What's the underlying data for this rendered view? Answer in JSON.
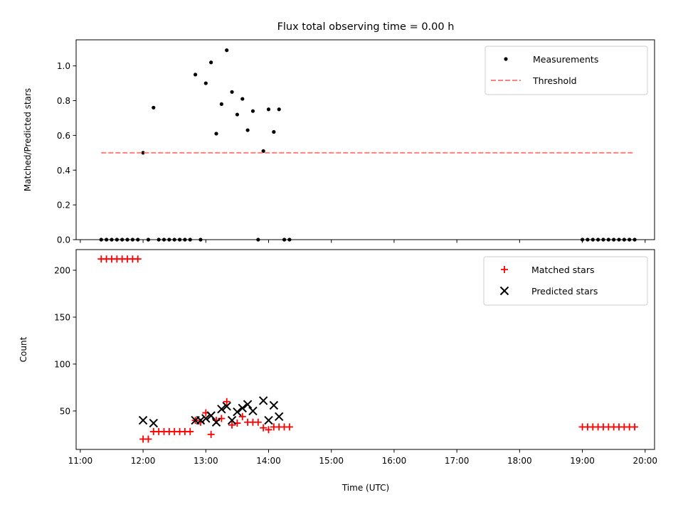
{
  "figure": {
    "title": "Flux total observing time = 0.00 h"
  },
  "chart_data": [
    {
      "type": "scatter",
      "panel": "top",
      "title": "Flux total observing time = 0.00 h",
      "xlabel": "",
      "ylabel": "Matched/Predicted stars",
      "xlim": [
        "10:56",
        "20:09"
      ],
      "ylim": [
        0,
        1.15
      ],
      "xticks": [
        "11:00",
        "12:00",
        "13:00",
        "14:00",
        "15:00",
        "16:00",
        "17:00",
        "18:00",
        "19:00",
        "20:00"
      ],
      "yticks": [
        "0.0",
        "0.2",
        "0.4",
        "0.6",
        "0.8",
        "1.0"
      ],
      "ytick_values": [
        0,
        0.2,
        0.4,
        0.6,
        0.8,
        1.0
      ],
      "legend_position": "top-right",
      "grid": false,
      "series": [
        {
          "name": "Measurements",
          "marker": "dot",
          "color": "#000000",
          "points": [
            [
              "11:20",
              0
            ],
            [
              "11:25",
              0
            ],
            [
              "11:30",
              0
            ],
            [
              "11:35",
              0
            ],
            [
              "11:40",
              0
            ],
            [
              "11:45",
              0
            ],
            [
              "11:50",
              0
            ],
            [
              "11:55",
              0
            ],
            [
              "12:00",
              0.5
            ],
            [
              "12:05",
              0
            ],
            [
              "12:10",
              0.76
            ],
            [
              "12:15",
              0
            ],
            [
              "12:20",
              0
            ],
            [
              "12:25",
              0
            ],
            [
              "12:30",
              0
            ],
            [
              "12:35",
              0
            ],
            [
              "12:40",
              0
            ],
            [
              "12:45",
              0
            ],
            [
              "12:50",
              0.95
            ],
            [
              "12:55",
              0
            ],
            [
              "13:00",
              0.9
            ],
            [
              "13:05",
              1.02
            ],
            [
              "13:10",
              0.61
            ],
            [
              "13:15",
              0.78
            ],
            [
              "13:20",
              1.09
            ],
            [
              "13:25",
              0.85
            ],
            [
              "13:30",
              0.72
            ],
            [
              "13:35",
              0.81
            ],
            [
              "13:40",
              0.63
            ],
            [
              "13:45",
              0.74
            ],
            [
              "13:50",
              0
            ],
            [
              "13:55",
              0.51
            ],
            [
              "14:00",
              0.75
            ],
            [
              "14:05",
              0.62
            ],
            [
              "14:10",
              0.75
            ],
            [
              "14:15",
              0
            ],
            [
              "14:20",
              0
            ],
            [
              "19:00",
              0
            ],
            [
              "19:05",
              0
            ],
            [
              "19:10",
              0
            ],
            [
              "19:15",
              0
            ],
            [
              "19:20",
              0
            ],
            [
              "19:25",
              0
            ],
            [
              "19:30",
              0
            ],
            [
              "19:35",
              0
            ],
            [
              "19:40",
              0
            ],
            [
              "19:45",
              0
            ],
            [
              "19:50",
              0
            ]
          ]
        },
        {
          "name": "Threshold",
          "marker": "dashed-line",
          "color": "#ff7f7f",
          "points": [
            [
              "11:20",
              0.5
            ],
            [
              "19:50",
              0.5
            ]
          ]
        }
      ]
    },
    {
      "type": "scatter",
      "panel": "bottom",
      "xlabel": "Time (UTC)",
      "ylabel": "Count",
      "xlim": [
        "10:56",
        "20:09"
      ],
      "ylim": [
        9,
        222
      ],
      "xticks": [
        "11:00",
        "12:00",
        "13:00",
        "14:00",
        "15:00",
        "16:00",
        "17:00",
        "18:00",
        "19:00",
        "20:00"
      ],
      "yticks": [
        "50",
        "100",
        "150",
        "200"
      ],
      "ytick_values": [
        50,
        100,
        150,
        200
      ],
      "legend_position": "top-right",
      "grid": false,
      "series": [
        {
          "name": "Matched stars",
          "marker": "plus",
          "color": "#ff0000",
          "points": [
            [
              "11:20",
              212
            ],
            [
              "11:25",
              212
            ],
            [
              "11:30",
              212
            ],
            [
              "11:35",
              212
            ],
            [
              "11:40",
              212
            ],
            [
              "11:45",
              212
            ],
            [
              "11:50",
              212
            ],
            [
              "11:55",
              212
            ],
            [
              "12:00",
              20
            ],
            [
              "12:05",
              20
            ],
            [
              "12:10",
              28
            ],
            [
              "12:15",
              28
            ],
            [
              "12:20",
              28
            ],
            [
              "12:25",
              28
            ],
            [
              "12:30",
              28
            ],
            [
              "12:35",
              28
            ],
            [
              "12:40",
              28
            ],
            [
              "12:45",
              28
            ],
            [
              "12:50",
              40
            ],
            [
              "12:55",
              38
            ],
            [
              "13:00",
              48
            ],
            [
              "13:05",
              25
            ],
            [
              "13:10",
              40
            ],
            [
              "13:15",
              42
            ],
            [
              "13:20",
              60
            ],
            [
              "13:25",
              35
            ],
            [
              "13:30",
              37
            ],
            [
              "13:35",
              44
            ],
            [
              "13:40",
              38
            ],
            [
              "13:45",
              38
            ],
            [
              "13:50",
              38
            ],
            [
              "13:55",
              32
            ],
            [
              "14:00",
              30
            ],
            [
              "14:05",
              33
            ],
            [
              "14:10",
              33
            ],
            [
              "14:15",
              33
            ],
            [
              "14:20",
              33
            ],
            [
              "19:00",
              33
            ],
            [
              "19:05",
              33
            ],
            [
              "19:10",
              33
            ],
            [
              "19:15",
              33
            ],
            [
              "19:20",
              33
            ],
            [
              "19:25",
              33
            ],
            [
              "19:30",
              33
            ],
            [
              "19:35",
              33
            ],
            [
              "19:40",
              33
            ],
            [
              "19:45",
              33
            ],
            [
              "19:50",
              33
            ]
          ]
        },
        {
          "name": "Predicted stars",
          "marker": "x",
          "color": "#000000",
          "points": [
            [
              "12:00",
              40
            ],
            [
              "12:10",
              37
            ],
            [
              "12:50",
              40
            ],
            [
              "12:55",
              40
            ],
            [
              "13:00",
              42
            ],
            [
              "13:05",
              45
            ],
            [
              "13:10",
              38
            ],
            [
              "13:15",
              52
            ],
            [
              "13:20",
              55
            ],
            [
              "13:25",
              40
            ],
            [
              "13:30",
              49
            ],
            [
              "13:35",
              53
            ],
            [
              "13:40",
              57
            ],
            [
              "13:45",
              50
            ],
            [
              "13:55",
              61
            ],
            [
              "14:00",
              40
            ],
            [
              "14:05",
              56
            ],
            [
              "14:10",
              44
            ]
          ]
        }
      ]
    }
  ]
}
